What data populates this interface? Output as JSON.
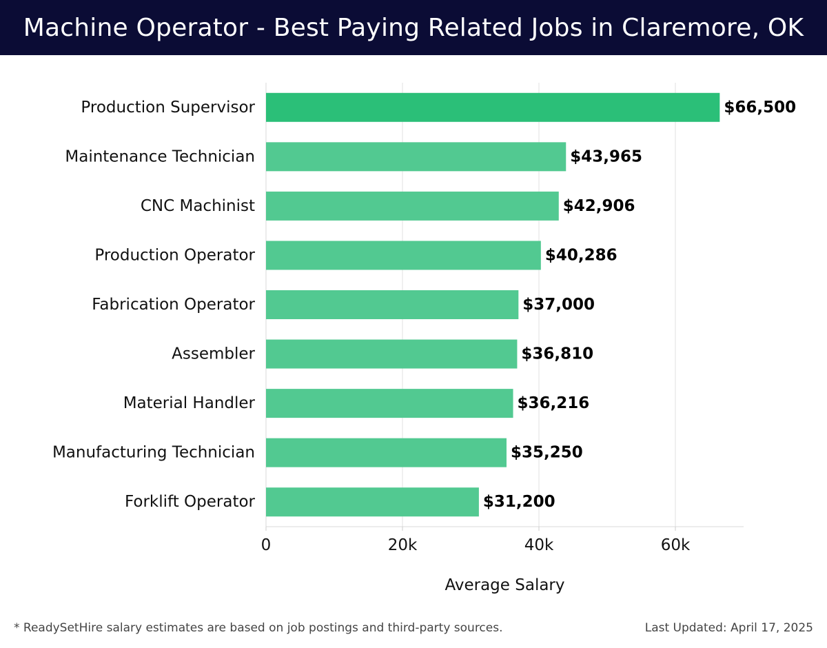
{
  "header": {
    "title": "Machine Operator - Best Paying Related Jobs in Claremore, OK"
  },
  "footer": {
    "note": "* ReadySetHire salary estimates are based on job postings and third-party sources.",
    "updated": "Last Updated: April 17, 2025"
  },
  "colors": {
    "header_bg": "#0b0c35",
    "bar_top": "#2bbf78",
    "bar": "#52c991"
  },
  "chart_data": {
    "type": "bar",
    "orientation": "horizontal",
    "categories": [
      "Production Supervisor",
      "Maintenance Technician",
      "CNC Machinist",
      "Production Operator",
      "Fabrication Operator",
      "Assembler",
      "Material Handler",
      "Manufacturing Technician",
      "Forklift Operator"
    ],
    "values": [
      66500,
      43965,
      42906,
      40286,
      37000,
      36810,
      36216,
      35250,
      31200
    ],
    "data_labels": [
      "$66,500",
      "$43,965",
      "$42,906",
      "$40,286",
      "$37,000",
      "$36,810",
      "$36,216",
      "$35,250",
      "$31,200"
    ],
    "xlabel": "Average Salary",
    "xticks": [
      {
        "value": 0,
        "label": "0"
      },
      {
        "value": 20000,
        "label": "20k"
      },
      {
        "value": 40000,
        "label": "40k"
      },
      {
        "value": 60000,
        "label": "60k"
      }
    ],
    "xlim": [
      0,
      70000
    ],
    "grid": true
  }
}
